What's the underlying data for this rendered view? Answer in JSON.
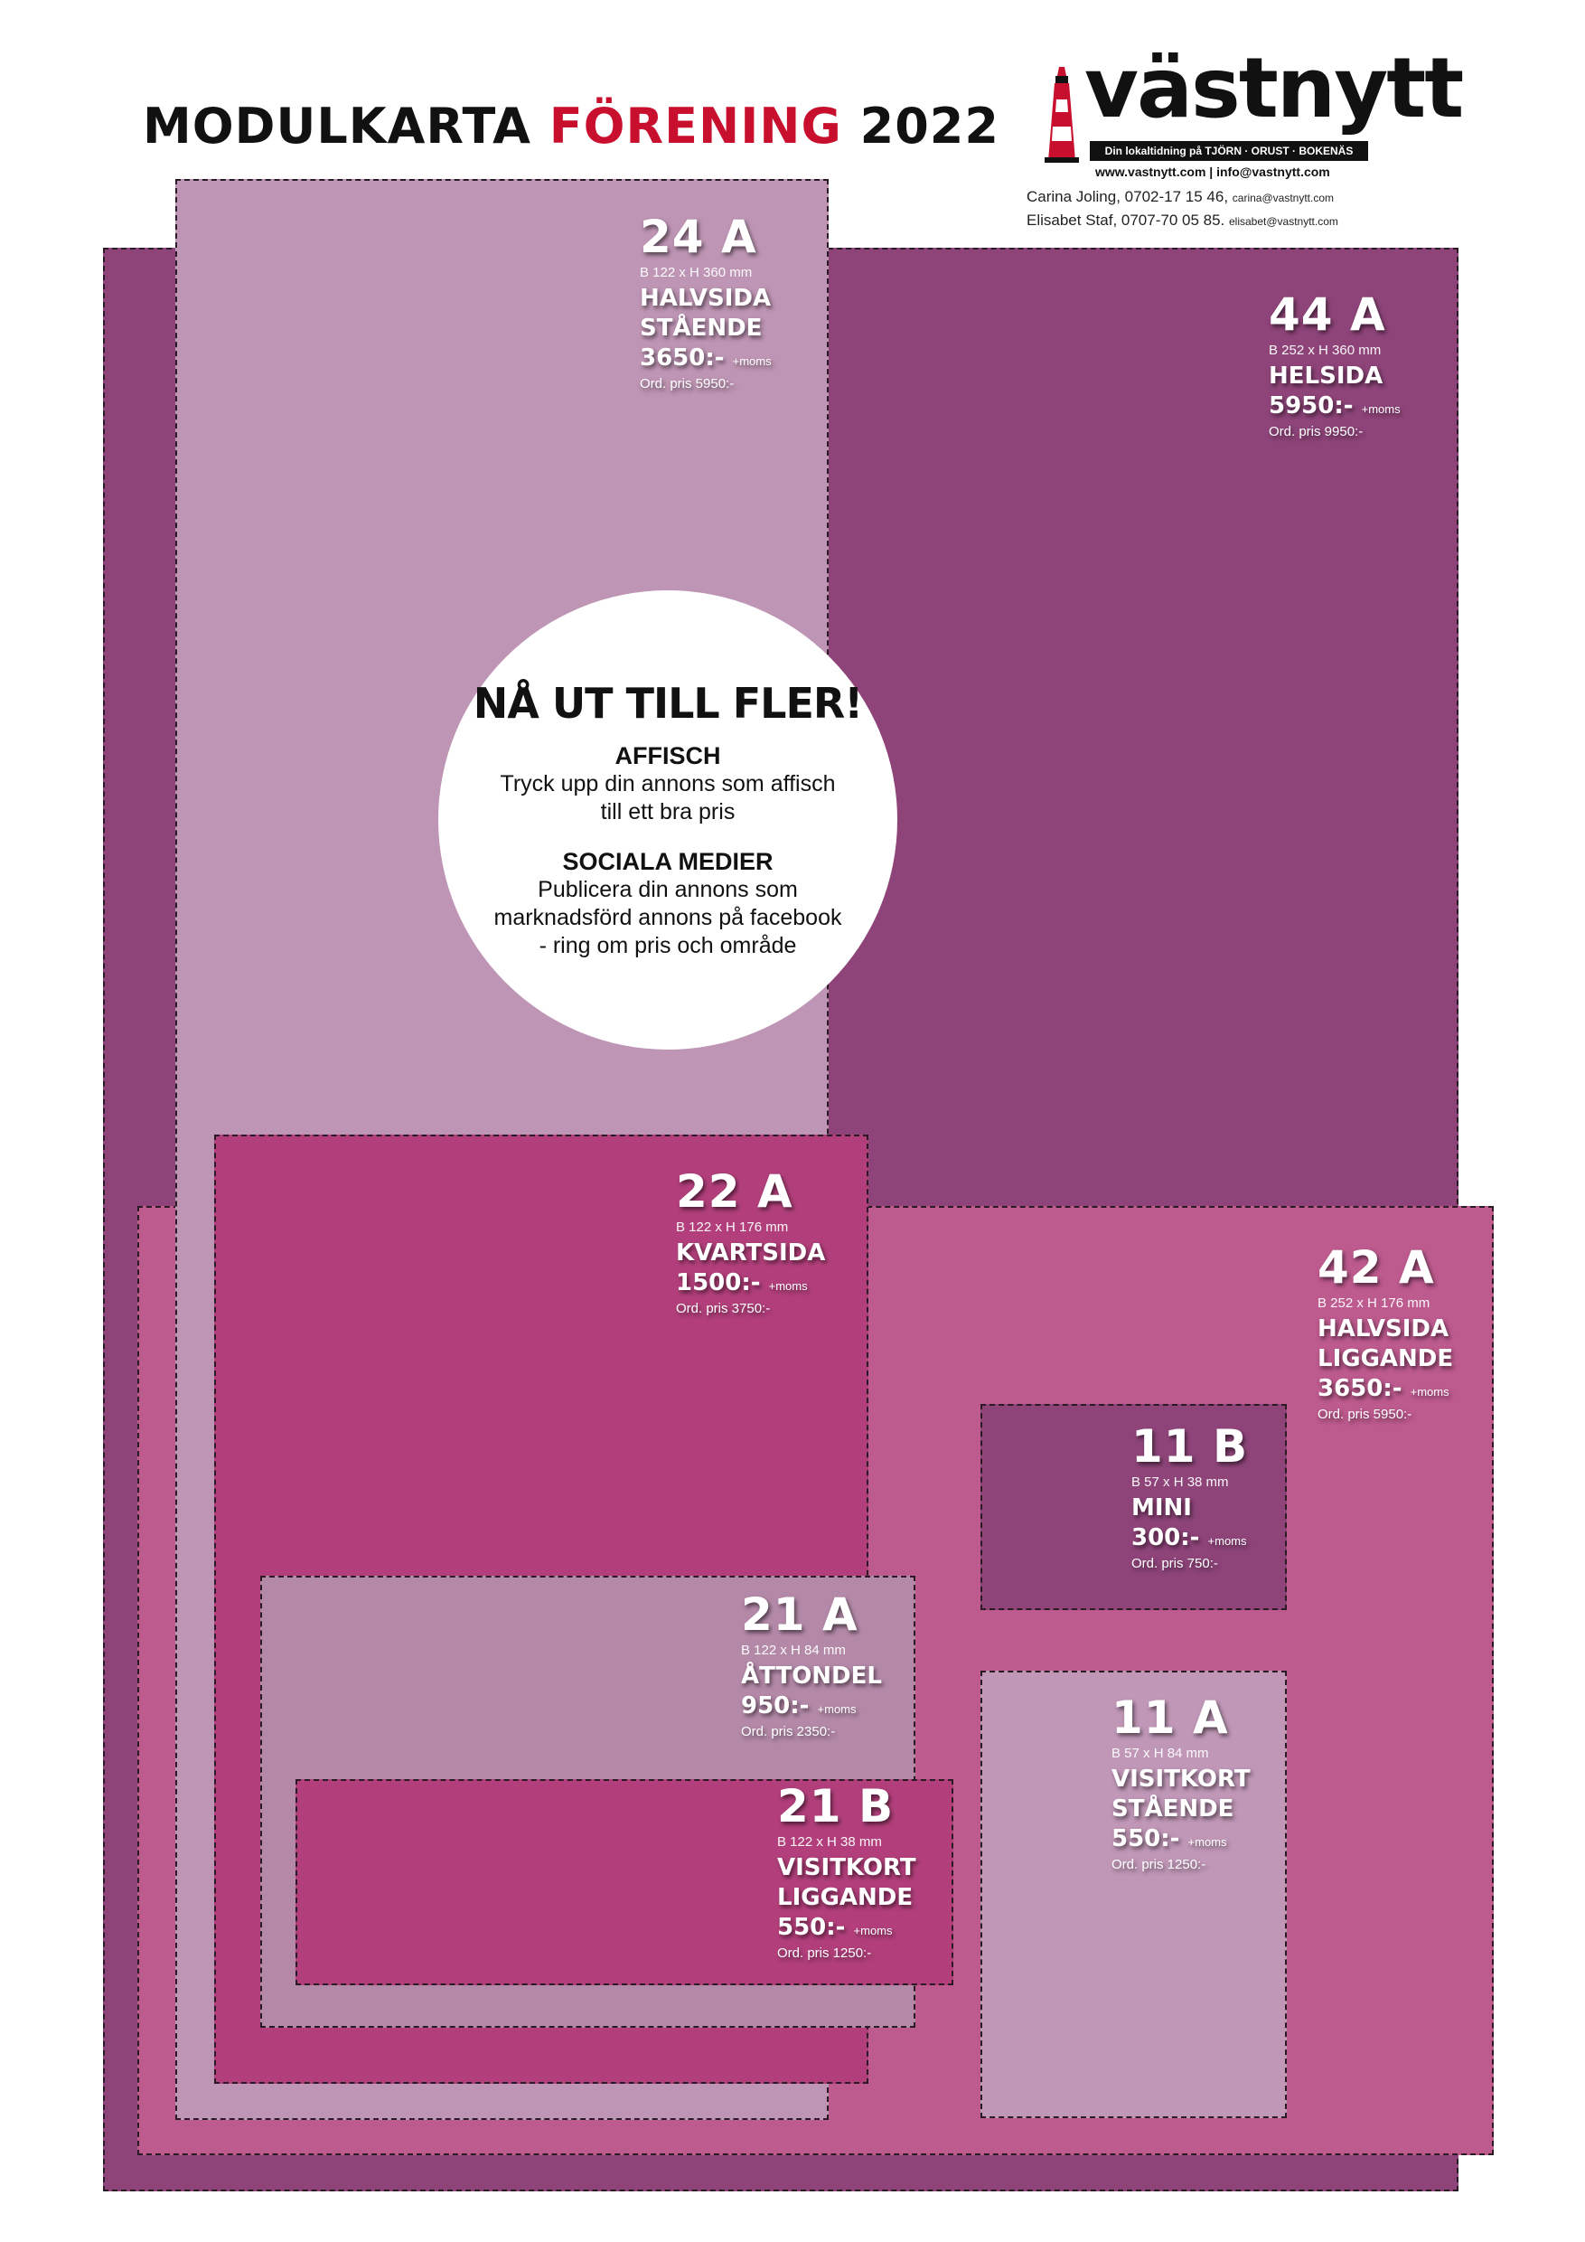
{
  "header": {
    "title_part1": "MODULKARTA ",
    "title_accent": "FÖRENING",
    "title_part2": " 2022"
  },
  "logo": {
    "name": "västnytt",
    "tagline": "Din lokaltidning på TJÖRN · ORUST · BOKENÄS",
    "icon": "lighthouse-icon"
  },
  "contact": {
    "web": "www.vastnytt.com | info@vastnytt.com",
    "person1_line": "Carina Joling, 0702-17 15 46,",
    "person1_email": "carina@vastnytt.com",
    "person2_line": "Elisabet Staf, 0707-70 05 85.",
    "person2_email": "elisabet@vastnytt.com"
  },
  "colors": {
    "plum": "#8e4479",
    "mauve": "#be95b4",
    "magenta": "#b23f7b",
    "pink": "#bd5a8e",
    "lavender": "#b489a8",
    "lightmauve": "#c097b7"
  },
  "modules": {
    "m44a": {
      "code": "44 A",
      "dims": "B 252 x H 360 mm",
      "name1": "HELSIDA",
      "name2": "",
      "price": "5950:-",
      "moms": "+moms",
      "ord": "Ord. pris 9950:-"
    },
    "m24a": {
      "code": "24 A",
      "dims": "B 122 x H 360 mm",
      "name1": "HALVSIDA",
      "name2": "STÅENDE",
      "price": "3650:-",
      "moms": "+moms",
      "ord": "Ord. pris 5950:-"
    },
    "m42a": {
      "code": "42 A",
      "dims": "B 252 x H 176 mm",
      "name1": "HALVSIDA",
      "name2": "LIGGANDE",
      "price": "3650:-",
      "moms": "+moms",
      "ord": "Ord. pris 5950:-"
    },
    "m22a": {
      "code": "22 A",
      "dims": "B 122 x H 176 mm",
      "name1": "KVARTSIDA",
      "name2": "",
      "price": "1500:-",
      "moms": "+moms",
      "ord": "Ord. pris 3750:-"
    },
    "m11b": {
      "code": "11 B",
      "dims": "B 57 x H 38 mm",
      "name1": "MINI",
      "name2": "",
      "price": "300:-",
      "moms": "+moms",
      "ord": "Ord. pris 750:-"
    },
    "m21a": {
      "code": "21 A",
      "dims": "B 122 x H 84 mm",
      "name1": "ÅTTONDEL",
      "name2": "",
      "price": "950:-",
      "moms": "+moms",
      "ord": "Ord. pris 2350:-"
    },
    "m11a": {
      "code": "11 A",
      "dims": "B 57 x H 84 mm",
      "name1": "VISITKORT",
      "name2": "STÅENDE",
      "price": "550:-",
      "moms": "+moms",
      "ord": "Ord. pris 1250:-"
    },
    "m21b": {
      "code": "21 B",
      "dims": "B 122 x H 38 mm",
      "name1": "VISITKORT",
      "name2": "LIGGANDE",
      "price": "550:-",
      "moms": "+moms",
      "ord": "Ord. pris 1250:-"
    }
  },
  "promo": {
    "heading": "NÅ UT TILL FLER!",
    "affisch_title": "AFFISCH",
    "affisch_line1": "Tryck upp din annons som affisch",
    "affisch_line2": "till ett bra pris",
    "social_title": "SOCIALA MEDIER",
    "social_line1": "Publicera din annons som",
    "social_line2": "marknadsförd annons på facebook",
    "social_line3": "- ring om pris och område"
  }
}
